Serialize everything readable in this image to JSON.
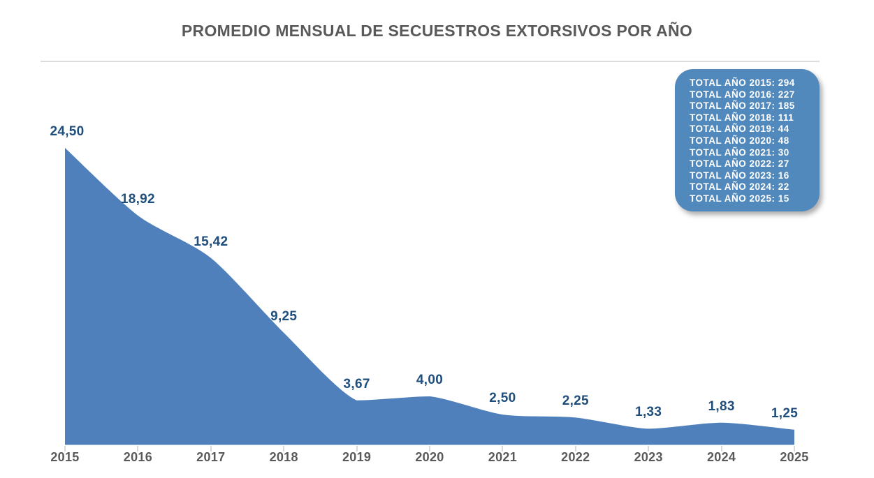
{
  "title": "PROMEDIO MENSUAL DE SECUESTROS EXTORSIVOS POR AÑO",
  "chart_data": {
    "type": "area",
    "title": "PROMEDIO MENSUAL DE SECUESTROS EXTORSIVOS POR AÑO",
    "categories": [
      "2015",
      "2016",
      "2017",
      "2018",
      "2019",
      "2020",
      "2021",
      "2022",
      "2023",
      "2024",
      "2025"
    ],
    "values": [
      24.5,
      18.92,
      15.42,
      9.25,
      3.67,
      4.0,
      2.5,
      2.25,
      1.33,
      1.83,
      1.25
    ],
    "value_labels": [
      "24,50",
      "18,92",
      "15,42",
      "9,25",
      "3,67",
      "4,00",
      "2,50",
      "2,25",
      "1,33",
      "1,83",
      "1,25"
    ],
    "xlabel": "",
    "ylabel": "",
    "ylim": [
      0,
      26
    ],
    "grid": false,
    "legend": false,
    "colors": {
      "area_fill": "#4f80bc",
      "data_label": "#1f4e7c",
      "axis_label": "#595959",
      "title": "#595959",
      "separator": "#dcdcdc",
      "tick": "#d9d9d9",
      "annotation_bg": "#5289bd",
      "annotation_text": "#ffffff",
      "background": "#ffffff"
    },
    "annotation_box": {
      "position": "top-right",
      "lines": [
        "TOTAL AÑO 2015: 294",
        "TOTAL AÑO 2016: 227",
        "TOTAL AÑO 2017: 185",
        "TOTAL AÑO 2018: 111",
        "TOTAL AÑO 2019: 44",
        "TOTAL AÑO 2020: 48",
        "TOTAL AÑO 2021: 30",
        "TOTAL AÑO 2022: 27",
        "TOTAL AÑO 2023: 16",
        "TOTAL AÑO 2024: 22",
        "TOTAL AÑO 2025: 15"
      ]
    }
  }
}
